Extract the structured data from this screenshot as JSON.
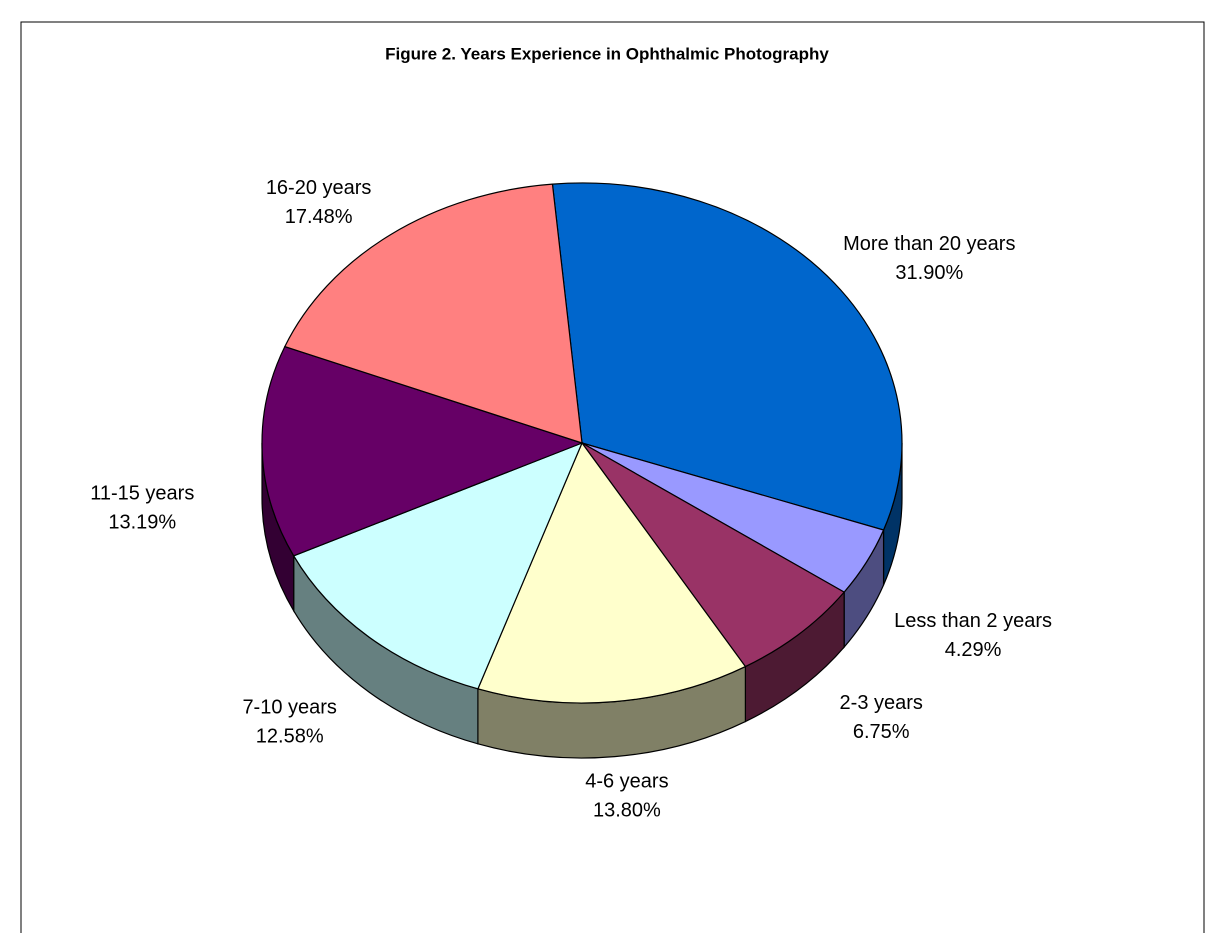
{
  "chart_data": {
    "type": "pie",
    "title": "Figure 2. Years Experience in Ophthalmic Photography",
    "categories": [
      "More than 20 years",
      "Less than 2 years",
      "2-3 years",
      "4-6 years",
      "7-10 years",
      "11-15 years",
      "16-20 years"
    ],
    "values": [
      31.9,
      4.29,
      6.75,
      13.8,
      12.58,
      13.19,
      17.48
    ],
    "value_labels": [
      "31.90%",
      "4.29%",
      "6.75%",
      "13.80%",
      "12.58%",
      "13.19%",
      "17.48%"
    ],
    "colors": [
      "#0066CC",
      "#9999FF",
      "#993366",
      "#FFFFCC",
      "#CCFFFF",
      "#660066",
      "#FF8080"
    ]
  }
}
